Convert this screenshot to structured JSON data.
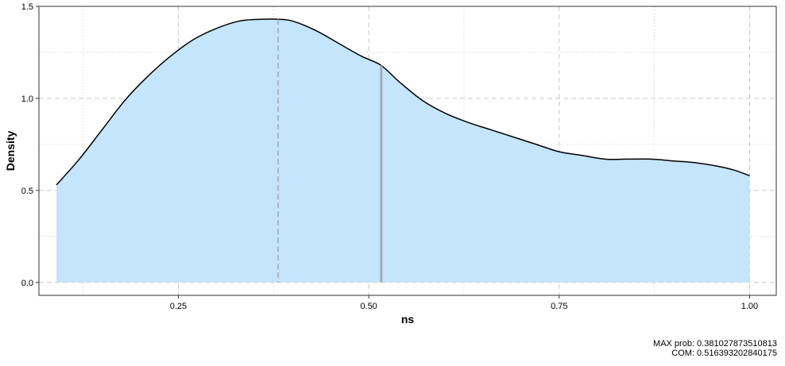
{
  "chart_data": {
    "type": "area",
    "xlabel": "ns",
    "ylabel": "Density",
    "xlim": [
      0.067,
      1.035
    ],
    "ylim": [
      -0.07,
      1.5
    ],
    "x_ticks": [
      0.25,
      0.5,
      0.75,
      1.0
    ],
    "x_tick_labels": [
      "0.25",
      "0.50",
      "0.75",
      "1.00"
    ],
    "x_minor_ticks": [
      0.125,
      0.375,
      0.625,
      0.875
    ],
    "y_ticks": [
      0.0,
      0.5,
      1.0,
      1.5
    ],
    "y_tick_labels": [
      "0.0",
      "0.5",
      "1.0",
      "1.5"
    ],
    "y_minor_ticks": [
      0.25,
      0.75,
      1.25
    ],
    "grid": true,
    "series": [
      {
        "x": [
          0.09,
          0.12,
          0.15,
          0.18,
          0.21,
          0.24,
          0.27,
          0.3,
          0.33,
          0.36,
          0.381,
          0.4,
          0.43,
          0.46,
          0.49,
          0.516,
          0.54,
          0.57,
          0.6,
          0.63,
          0.66,
          0.69,
          0.72,
          0.75,
          0.78,
          0.81,
          0.84,
          0.87,
          0.9,
          0.93,
          0.96,
          0.98,
          1.0
        ],
        "y": [
          0.53,
          0.67,
          0.83,
          0.99,
          1.12,
          1.23,
          1.32,
          1.38,
          1.42,
          1.43,
          1.43,
          1.42,
          1.37,
          1.3,
          1.23,
          1.18,
          1.09,
          0.99,
          0.92,
          0.87,
          0.83,
          0.79,
          0.75,
          0.71,
          0.69,
          0.67,
          0.67,
          0.67,
          0.66,
          0.65,
          0.63,
          0.61,
          0.58
        ]
      }
    ],
    "fill_color": "#c4e5fb",
    "line_color": "#000000",
    "max_prob_x": 0.381027873510813,
    "com_x": 0.516393202840175,
    "max_line_color": "#aaaaaa",
    "com_line_color": "#aaaaaa"
  },
  "caption": {
    "max_prob": "MAX prob:  0.381027873510813",
    "com": "COM:  0.516393202840175"
  }
}
